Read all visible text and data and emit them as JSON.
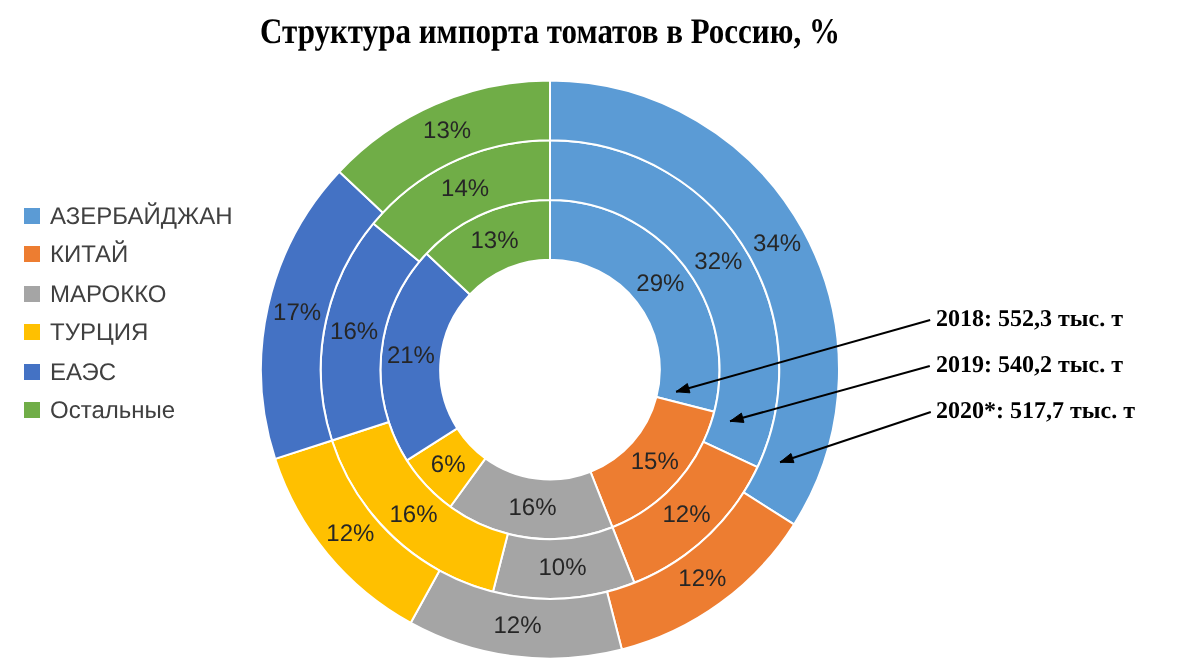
{
  "chart_data": {
    "type": "donut",
    "title": "Структура импорта томатов в Россию, %",
    "categories": [
      "АЗЕРБАЙДЖАН",
      "КИТАЙ",
      "МАРОККО",
      "ТУРЦИЯ",
      "ЕАЭС",
      "Остальные"
    ],
    "colors": [
      "#5b9bd5",
      "#ed7d31",
      "#a5a5a5",
      "#ffc000",
      "#4472c4",
      "#70ad47"
    ],
    "series": [
      {
        "name": "2018: 552,3 тыс. т",
        "values": [
          29,
          15,
          16,
          6,
          21,
          13
        ],
        "value_labels": [
          "29%",
          "15%",
          "16%",
          "6%",
          "21%",
          "13%"
        ]
      },
      {
        "name": "2019: 540,2 тыс. т",
        "values": [
          32,
          12,
          10,
          16,
          16,
          14
        ],
        "value_labels": [
          "32%",
          "12%",
          "10%",
          "16%",
          "16%",
          "14%"
        ]
      },
      {
        "name": "2020*: 517,7 тыс. т",
        "values": [
          34,
          12,
          12,
          12,
          17,
          13
        ],
        "value_labels": [
          "34%",
          "12%",
          "12%",
          "12%",
          "17%",
          "13%"
        ]
      }
    ],
    "legend": "left"
  }
}
